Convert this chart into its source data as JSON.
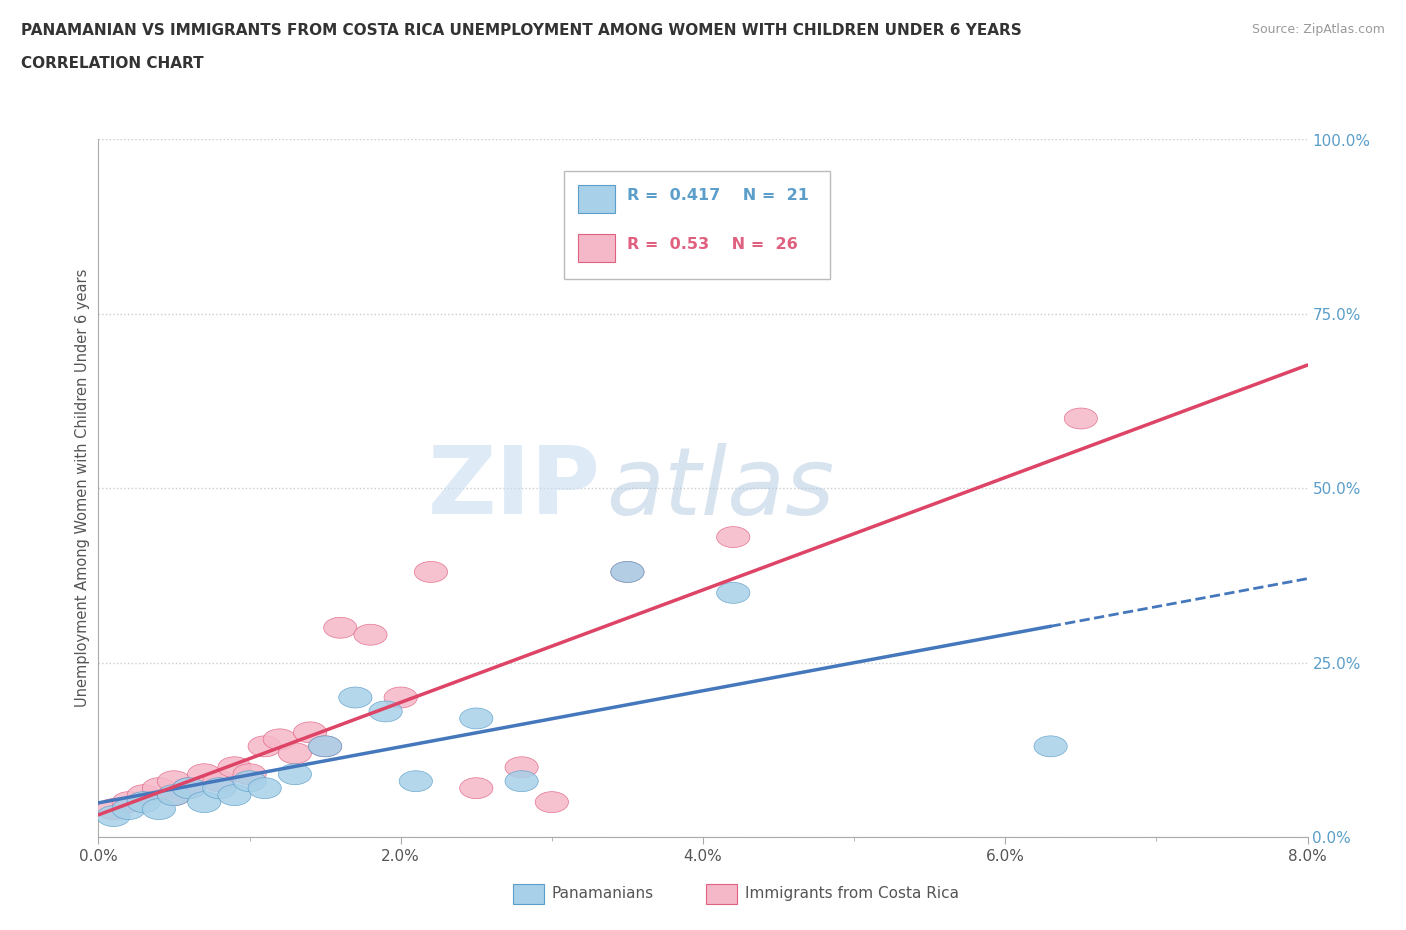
{
  "title_line1": "PANAMANIAN VS IMMIGRANTS FROM COSTA RICA UNEMPLOYMENT AMONG WOMEN WITH CHILDREN UNDER 6 YEARS",
  "title_line2": "CORRELATION CHART",
  "source": "Source: ZipAtlas.com",
  "ylabel": "Unemployment Among Women with Children Under 6 years",
  "xlim": [
    0.0,
    0.08
  ],
  "ylim": [
    0.0,
    1.0
  ],
  "xtick_vals": [
    0.0,
    0.02,
    0.04,
    0.06,
    0.08
  ],
  "ytick_vals": [
    0.0,
    0.25,
    0.5,
    0.75,
    1.0
  ],
  "panamanians_R": 0.417,
  "panamanians_N": 21,
  "costa_rica_R": 0.53,
  "costa_rica_N": 26,
  "color_blue": "#A8D0E8",
  "color_pink": "#F5B8C8",
  "color_blue_dark": "#5B9EC9",
  "color_pink_dark": "#E06080",
  "color_line_blue": "#4477BB",
  "color_line_pink": "#DD4466",
  "watermark_zip": "ZIP",
  "watermark_atlas": "atlas",
  "background_color": "#FFFFFF",
  "grid_color": "#CCCCCC",
  "pan_x": [
    0.001,
    0.002,
    0.003,
    0.004,
    0.005,
    0.006,
    0.007,
    0.008,
    0.009,
    0.01,
    0.011,
    0.013,
    0.015,
    0.017,
    0.019,
    0.021,
    0.025,
    0.028,
    0.035,
    0.042,
    0.063
  ],
  "pan_y": [
    0.03,
    0.04,
    0.05,
    0.04,
    0.06,
    0.07,
    0.05,
    0.07,
    0.06,
    0.08,
    0.07,
    0.09,
    0.13,
    0.2,
    0.18,
    0.08,
    0.17,
    0.08,
    0.38,
    0.35,
    0.13
  ],
  "cr_x": [
    0.001,
    0.002,
    0.003,
    0.004,
    0.005,
    0.005,
    0.006,
    0.007,
    0.008,
    0.009,
    0.01,
    0.011,
    0.012,
    0.013,
    0.014,
    0.015,
    0.016,
    0.018,
    0.02,
    0.022,
    0.025,
    0.028,
    0.03,
    0.035,
    0.042,
    0.065
  ],
  "cr_y": [
    0.04,
    0.05,
    0.06,
    0.07,
    0.06,
    0.08,
    0.07,
    0.09,
    0.08,
    0.1,
    0.09,
    0.13,
    0.14,
    0.12,
    0.15,
    0.13,
    0.3,
    0.29,
    0.2,
    0.38,
    0.07,
    0.1,
    0.05,
    0.38,
    0.43,
    0.6
  ]
}
